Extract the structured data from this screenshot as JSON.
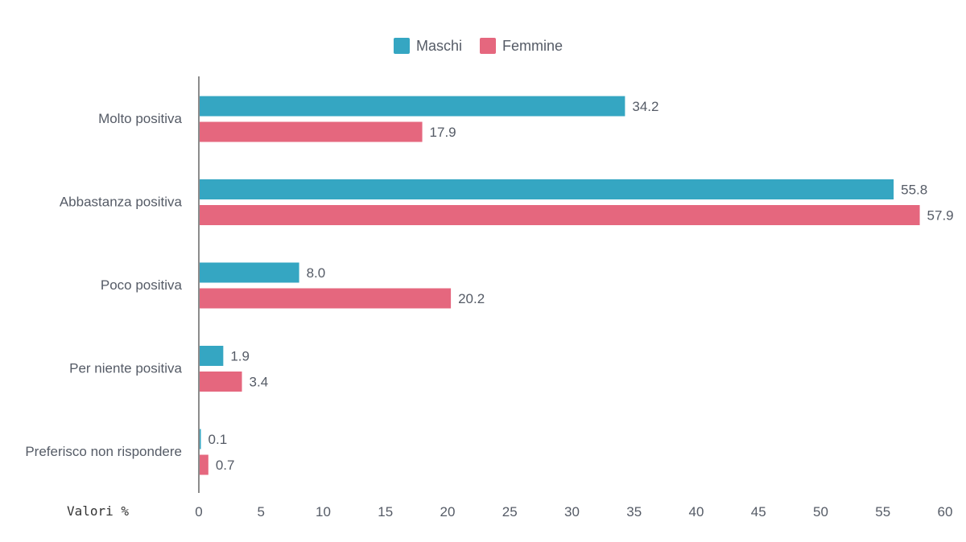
{
  "chart_data": {
    "type": "bar",
    "orientation": "horizontal",
    "categories": [
      "Molto positiva",
      "Abbastanza positiva",
      "Poco positiva",
      "Per niente positiva",
      "Preferisco non rispondere"
    ],
    "series": [
      {
        "name": "Maschi",
        "color": "#35a6c2",
        "values": [
          34.2,
          55.8,
          8.0,
          1.9,
          0.1
        ],
        "labels": [
          "34.2",
          "55.8",
          "8.0",
          "1.9",
          "0.1"
        ]
      },
      {
        "name": "Femmine",
        "color": "#e5677e",
        "values": [
          17.9,
          57.9,
          20.2,
          3.4,
          0.7
        ],
        "labels": [
          "17.9",
          "57.9",
          "20.2",
          "3.4",
          "0.7"
        ]
      }
    ],
    "xlim": [
      0,
      60
    ],
    "xticks": [
      0,
      5,
      10,
      15,
      20,
      25,
      30,
      35,
      40,
      45,
      50,
      55,
      60
    ],
    "unit_label": "Valori %",
    "legend_position": "top-center",
    "grid": false
  }
}
